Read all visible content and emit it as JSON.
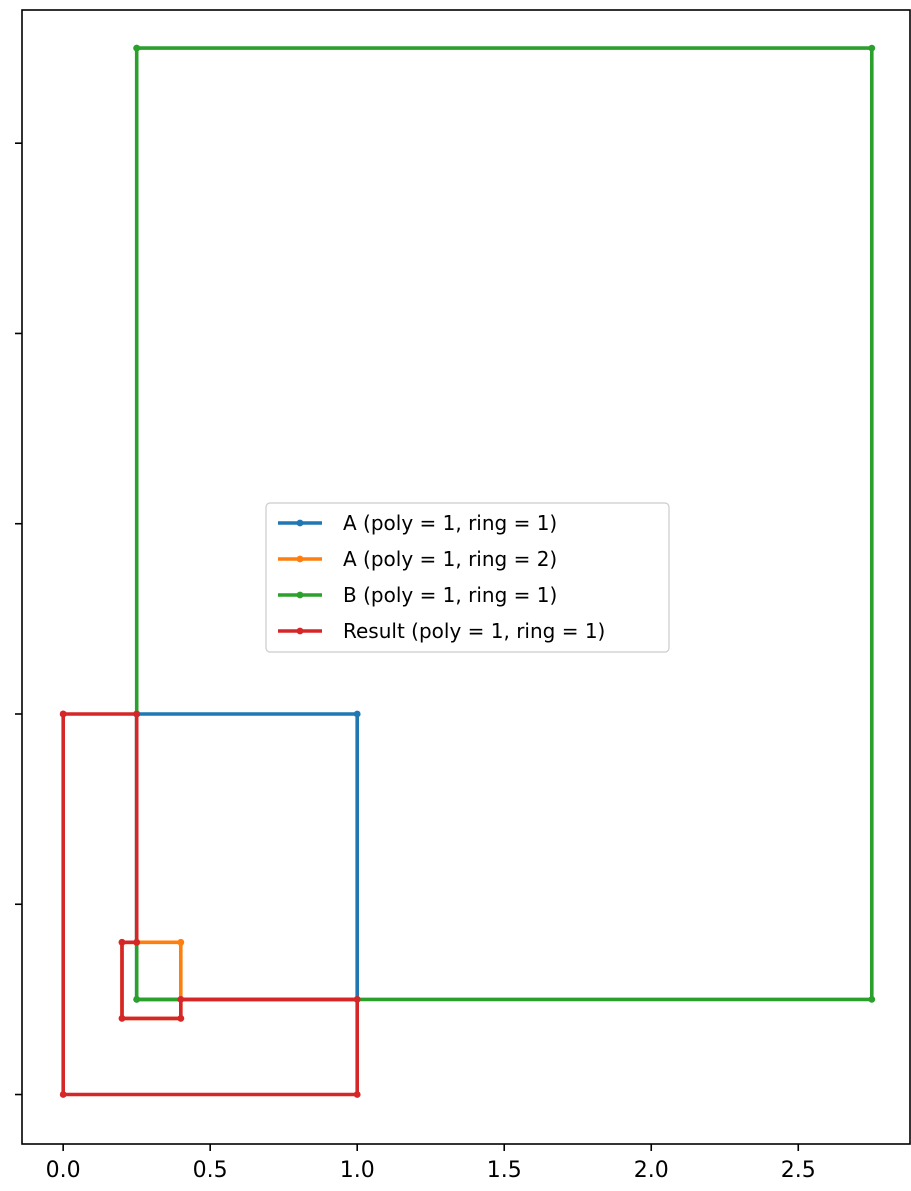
{
  "chart_data": {
    "type": "line",
    "title": "",
    "xlabel": "",
    "ylabel": "",
    "xlim": [
      -0.14,
      2.88
    ],
    "ylim": [
      -0.13,
      2.85
    ],
    "xticks": [
      0.0,
      0.5,
      1.0,
      1.5,
      2.0,
      2.5
    ],
    "xtick_labels": [
      "0.0",
      "0.5",
      "1.0",
      "1.5",
      "2.0",
      "2.5"
    ],
    "yticks": [
      0.0,
      0.5,
      1.0,
      1.5,
      2.0,
      2.5
    ],
    "ytick_labels": [
      "",
      "",
      "",
      "",
      "",
      ""
    ],
    "grid": false,
    "legend_position": "center",
    "series": [
      {
        "name": "A (poly = 1, ring = 1)",
        "color": "#1f77b4",
        "points": [
          [
            0.25,
            1.0
          ],
          [
            1.0,
            1.0
          ],
          [
            1.0,
            0.25
          ],
          [
            0.25,
            0.25
          ],
          [
            0.25,
            1.0
          ]
        ]
      },
      {
        "name": "A (poly = 1, ring = 2)",
        "color": "#ff7f0e",
        "points": [
          [
            0.25,
            0.4
          ],
          [
            0.4,
            0.4
          ],
          [
            0.4,
            0.2
          ],
          [
            0.2,
            0.2
          ],
          [
            0.2,
            0.4
          ],
          [
            0.25,
            0.4
          ]
        ]
      },
      {
        "name": "B (poly = 1, ring = 1)",
        "color": "#2ca02c",
        "points": [
          [
            0.25,
            2.75
          ],
          [
            2.75,
            2.75
          ],
          [
            2.75,
            0.25
          ],
          [
            0.25,
            0.25
          ],
          [
            0.25,
            2.75
          ]
        ]
      },
      {
        "name": "Result (poly = 1, ring = 1)",
        "color": "#d62728",
        "points": [
          [
            0.0,
            1.0
          ],
          [
            0.25,
            1.0
          ],
          [
            0.25,
            0.4
          ],
          [
            0.2,
            0.4
          ],
          [
            0.2,
            0.2
          ],
          [
            0.4,
            0.2
          ],
          [
            0.4,
            0.25
          ],
          [
            1.0,
            0.25
          ],
          [
            1.0,
            0.0
          ],
          [
            0.0,
            0.0
          ],
          [
            0.0,
            1.0
          ]
        ]
      }
    ]
  }
}
